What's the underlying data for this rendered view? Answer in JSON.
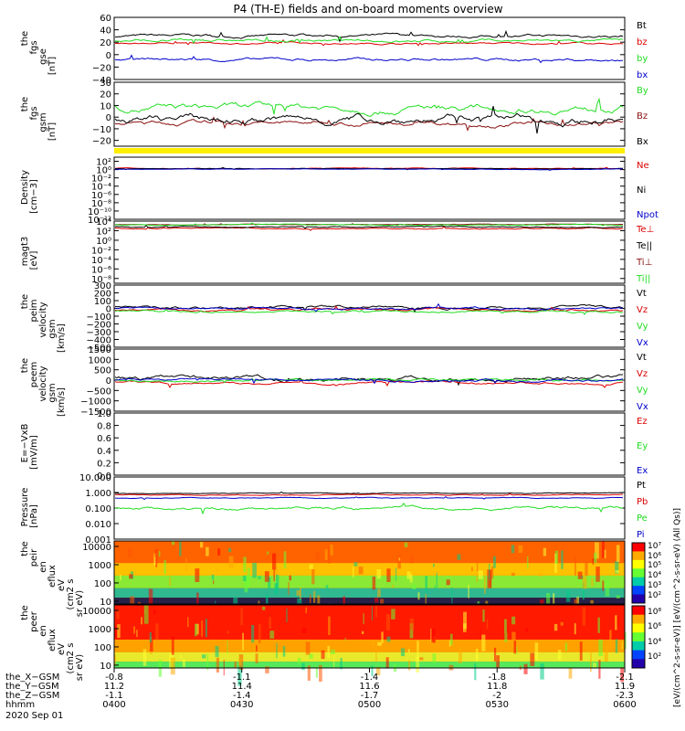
{
  "title": "P4 (TH-E) fields and on-board moments overview",
  "colors": {
    "black": "#000000",
    "red": "#dd0000",
    "green": "#22dd22",
    "blue": "#0000cc",
    "yellow": "#ffee00",
    "maroon": "#8b1010"
  },
  "chart_data": [
    {
      "type": "line",
      "panel_id": "fgs-gse",
      "ylabel": [
        "the",
        "fgs",
        "gse",
        "[nT]"
      ],
      "ylim": [
        -40,
        60
      ],
      "yticks": [
        -40,
        -20,
        0,
        20,
        40,
        60
      ],
      "tick_labels": [
        "−40",
        "−20",
        "0",
        "20",
        "40",
        "60"
      ],
      "series": [
        {
          "name": "Bt",
          "color": "black",
          "level": 30,
          "noise": 5
        },
        {
          "name": "bz",
          "color": "red",
          "level": 18,
          "noise": 3
        },
        {
          "name": "by",
          "color": "green",
          "level": 22,
          "noise": 5
        },
        {
          "name": "bx",
          "color": "blue",
          "level": -8,
          "noise": 5
        }
      ]
    },
    {
      "type": "line",
      "panel_id": "fgs-gsm",
      "ylabel": [
        "the",
        "fgs",
        "gsm",
        "[nT]"
      ],
      "ylim": [
        -25,
        30
      ],
      "yticks": [
        -20,
        -10,
        0,
        10,
        20,
        30
      ],
      "tick_labels": [
        "−20",
        "−10",
        "0",
        "10",
        "20",
        "30"
      ],
      "series": [
        {
          "name": "By",
          "color": "green",
          "level": 8,
          "noise": 6
        },
        {
          "name": "Bz",
          "color": "maroon",
          "level": -5,
          "noise": 4
        },
        {
          "name": "Bx",
          "color": "black",
          "level": -2,
          "noise": 7
        }
      ]
    },
    {
      "type": "area",
      "panel_id": "mode-bar",
      "fill_color": "yellow"
    },
    {
      "type": "line",
      "panel_id": "density",
      "scale": "log",
      "ylabel": [
        "Density",
        "[cm−3]"
      ],
      "ylim": [
        -12,
        3
      ],
      "yticks": [
        2,
        0,
        -2,
        -4,
        -6,
        -8,
        -10,
        -12
      ],
      "tick_labels": [
        "10²",
        "10⁰",
        "10⁻²",
        "10⁻⁴",
        "10⁻⁶",
        "10⁻⁸",
        "10⁻¹⁰",
        "10⁻¹²"
      ],
      "series": [
        {
          "name": "Ne",
          "color": "red",
          "level": 0.3,
          "noise": 0.2
        },
        {
          "name": "Ni",
          "color": "black",
          "level": 0.2,
          "noise": 0.15
        },
        {
          "name": "Npot",
          "color": "blue",
          "level": 0.1,
          "noise": 0.15
        }
      ]
    },
    {
      "type": "line",
      "panel_id": "temperature",
      "scale": "log",
      "ylabel": [
        "magt3",
        "[eV]"
      ],
      "ylim": [
        -9,
        4
      ],
      "yticks": [
        4,
        2,
        0,
        -2,
        -4,
        -6,
        -8
      ],
      "tick_labels": [
        "10⁴",
        "10²",
        "10⁰",
        "10⁻²",
        "10⁻⁴",
        "10⁻⁶",
        "10⁻⁸"
      ],
      "series": [
        {
          "name": "Te⊥",
          "color": "red",
          "level": 2.5,
          "noise": 0.3
        },
        {
          "name": "Te||",
          "color": "black",
          "level": 2.8,
          "noise": 0.25
        },
        {
          "name": "Ti⊥",
          "color": "maroon",
          "level": 3.3,
          "noise": 0.15
        },
        {
          "name": "Ti||",
          "color": "green",
          "level": 3.2,
          "noise": 0.2
        }
      ]
    },
    {
      "type": "line",
      "panel_id": "peim-velocity",
      "ylabel": [
        "the",
        "peim",
        "velocity",
        "gsm",
        "[km/s]"
      ],
      "ylim": [
        -500,
        300
      ],
      "yticks": [
        -500,
        -400,
        -300,
        -200,
        -100,
        0,
        100,
        200,
        300
      ],
      "tick_labels": [
        "−500",
        "−400",
        "−300",
        "−200",
        "−100",
        "0",
        "100",
        "200",
        "300"
      ],
      "series": [
        {
          "name": "Vt",
          "color": "black",
          "level": 20,
          "noise": 40
        },
        {
          "name": "Vz",
          "color": "red",
          "level": -20,
          "noise": 30
        },
        {
          "name": "Vy",
          "color": "green",
          "level": -40,
          "noise": 30
        },
        {
          "name": "Vx",
          "color": "blue",
          "level": 0,
          "noise": 30
        }
      ]
    },
    {
      "type": "line",
      "panel_id": "peem-velocity",
      "ylabel": [
        "the",
        "peem",
        "velocity",
        "gsm",
        "[km/s]"
      ],
      "ylim": [
        -1500,
        1500
      ],
      "yticks": [
        -1500,
        -1000,
        -500,
        0,
        500,
        1000,
        1500
      ],
      "tick_labels": [
        "−1500",
        "−1000",
        "−500",
        "0",
        "500",
        "1000",
        "1500"
      ],
      "series": [
        {
          "name": "Vt",
          "color": "black",
          "level": 100,
          "noise": 220
        },
        {
          "name": "Vz",
          "color": "red",
          "level": -100,
          "noise": 120
        },
        {
          "name": "Vy",
          "color": "green",
          "level": 0,
          "noise": 120
        },
        {
          "name": "Vx",
          "color": "blue",
          "level": 0,
          "noise": 120
        }
      ]
    },
    {
      "type": "line",
      "panel_id": "efield",
      "ylabel": [
        "E=−VxB",
        "[mV/m]"
      ],
      "ylim": [
        0,
        1
      ],
      "yticks": [
        0,
        0.2,
        0.4,
        0.6,
        0.8,
        1.0
      ],
      "tick_labels": [
        "0.0",
        "0.2",
        "0.4",
        "0.6",
        "0.8",
        "1.0"
      ],
      "series": [
        {
          "name": "Ez",
          "color": "red"
        },
        {
          "name": "Ey",
          "color": "green"
        },
        {
          "name": "Ex",
          "color": "blue"
        }
      ]
    },
    {
      "type": "line",
      "panel_id": "pressure",
      "scale": "log",
      "ylabel": [
        "Pressure",
        "[nPa]"
      ],
      "ylim": [
        -3,
        1
      ],
      "yticks": [
        1,
        0,
        -1,
        -2,
        -3
      ],
      "tick_labels": [
        "10.000",
        "1.000",
        "0.100",
        "0.010",
        "0.001"
      ],
      "series": [
        {
          "name": "Pt",
          "color": "black",
          "level": -0.05,
          "noise": 0.05
        },
        {
          "name": "Pb",
          "color": "red",
          "level": -0.15,
          "noise": 0.06
        },
        {
          "name": "Pe",
          "color": "green",
          "level": -1.0,
          "noise": 0.2
        },
        {
          "name": "Pi",
          "color": "blue",
          "level": -0.35,
          "noise": 0.06
        }
      ]
    },
    {
      "type": "heatmap",
      "panel_id": "peir-spectrogram",
      "ylabel": [
        "the",
        "peir",
        "en",
        "eflux",
        "eV",
        "(cm2 s",
        "sr eV)"
      ],
      "yticks": [
        10,
        100,
        1000,
        10000
      ],
      "tick_labels": [
        "10",
        "100",
        "1000",
        "10000"
      ]
    },
    {
      "type": "heatmap",
      "panel_id": "peer-spectrogram",
      "ylabel": [
        "the",
        "peer",
        "en",
        "eflux",
        "eV",
        "(cm2 s",
        "sr eV)"
      ],
      "yticks": [
        10,
        100,
        1000,
        10000
      ],
      "tick_labels": [
        "10",
        "100",
        "1000",
        "10000"
      ]
    }
  ],
  "colorbar": {
    "tick_labels": [
      "10⁷",
      "10⁶",
      "10⁵",
      "10⁴",
      "10³",
      "10²",
      "10⁸",
      "10⁶",
      "10⁴",
      "10²"
    ],
    "label": "[eV/(cm^2-s-sr-eV)]   [eV/(cm^2-s-sr-eV) (All Qs)]"
  },
  "x_axis": {
    "ticks": [
      {
        "x": -0.8,
        "y": 11.2,
        "z": -1.1,
        "time": "0400"
      },
      {
        "x": -1.1,
        "y": 11.4,
        "z": -1.4,
        "time": "0430"
      },
      {
        "x": -1.4,
        "y": 11.6,
        "z": -1.7,
        "time": "0500"
      },
      {
        "x": -1.8,
        "y": 11.8,
        "z": -2.0,
        "time": "0530"
      },
      {
        "x": -2.1,
        "y": 11.9,
        "z": -2.3,
        "time": "0600"
      }
    ],
    "row_labels": [
      "the_X−GSM",
      "the_Y−GSM",
      "the_Z−GSM",
      "hhmm"
    ],
    "date": "2020 Sep 01"
  }
}
